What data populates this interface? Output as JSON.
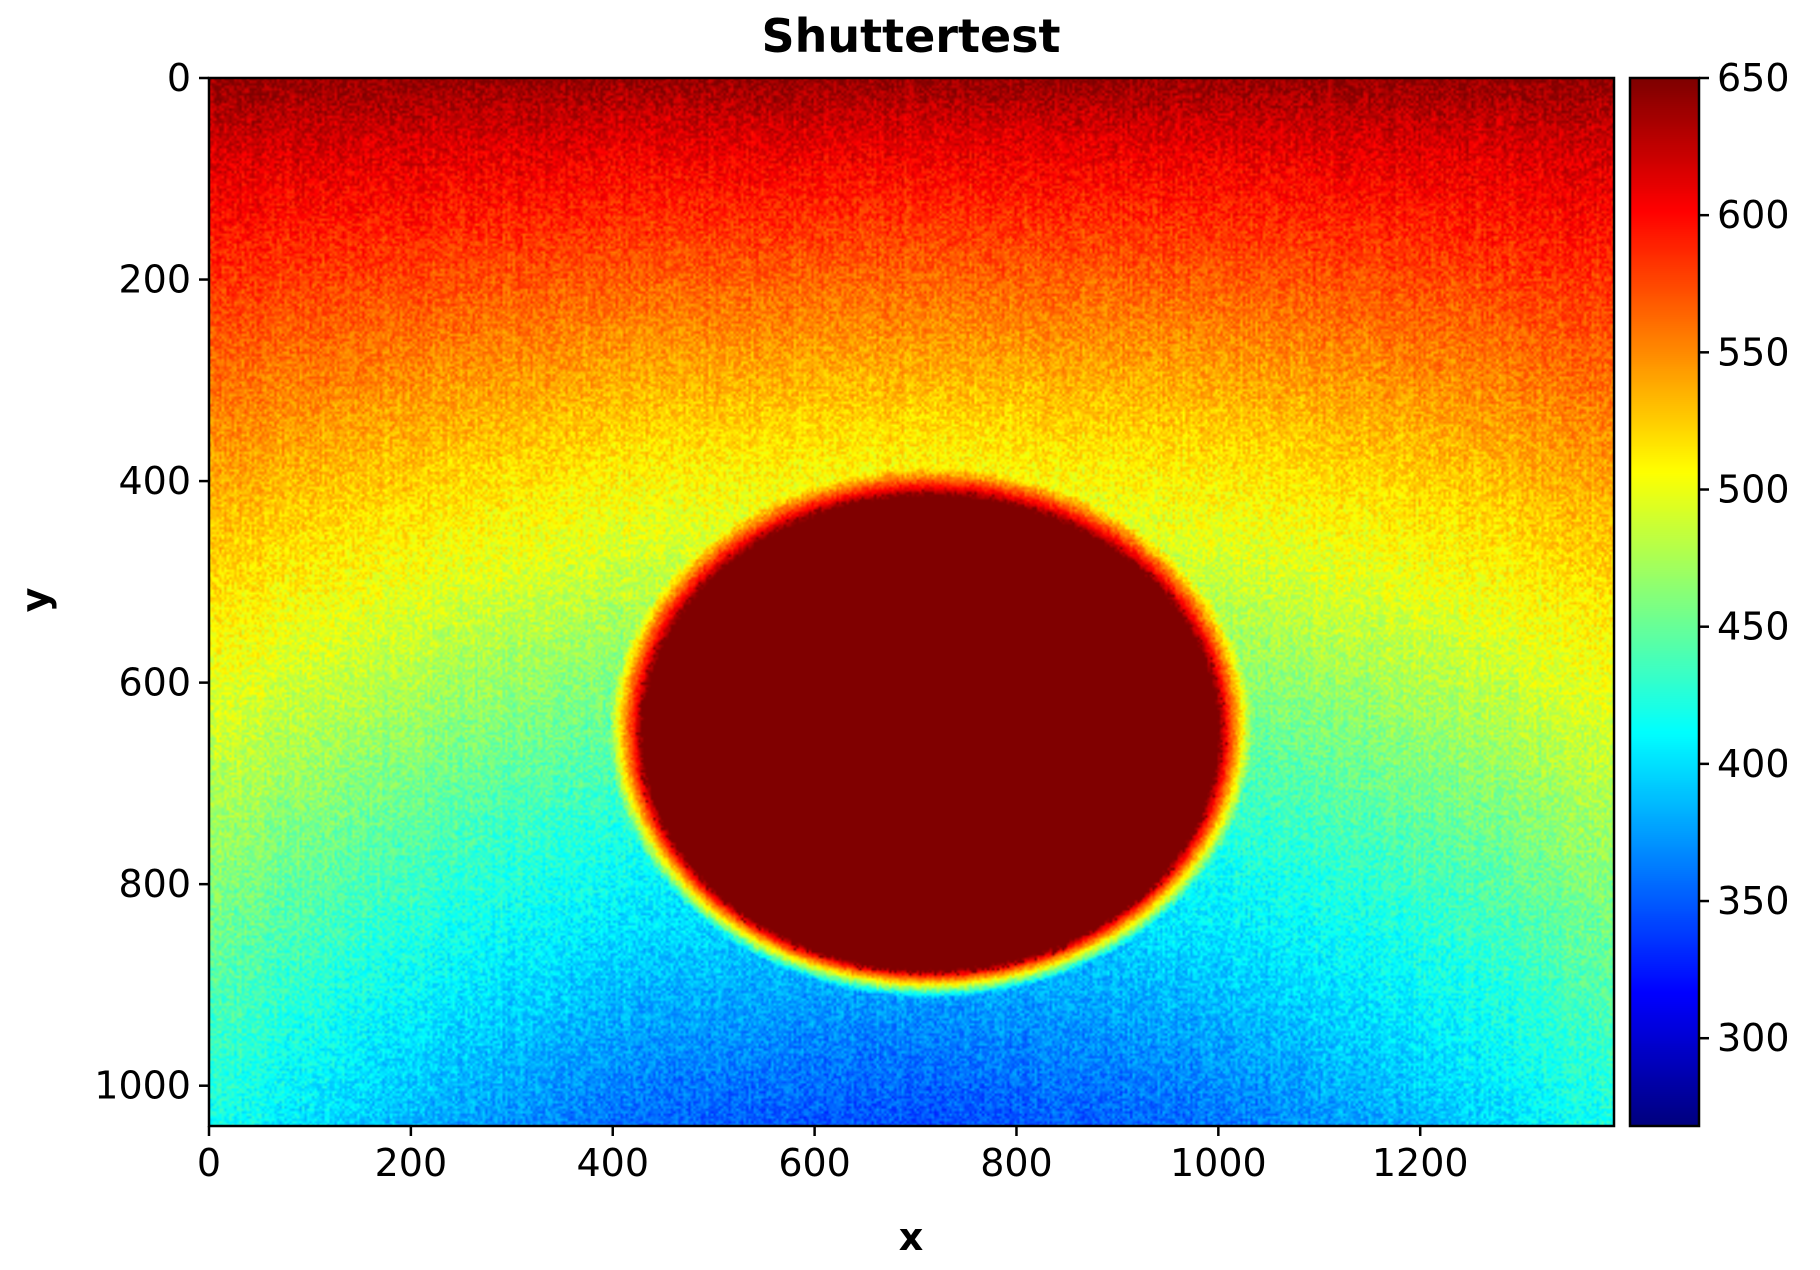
{
  "chart_data": {
    "type": "heatmap",
    "title": "Shuttertest",
    "xlabel": "x",
    "ylabel": "y",
    "xlim": [
      0,
      1392
    ],
    "ylim": [
      1040,
      0
    ],
    "xticks": [
      0,
      200,
      400,
      600,
      800,
      1000,
      1200
    ],
    "xtick_labels": [
      "0",
      "200",
      "400",
      "600",
      "800",
      "1000",
      "1200"
    ],
    "yticks": [
      0,
      200,
      400,
      600,
      800,
      1000
    ],
    "ytick_labels": [
      "0",
      "200",
      "400",
      "600",
      "800",
      "1000"
    ],
    "colormap": "jet",
    "colorbar": {
      "vmin": 268,
      "vmax": 650,
      "ticks": [
        300,
        350,
        400,
        450,
        500,
        550,
        600,
        650
      ],
      "tick_labels": [
        "300",
        "350",
        "400",
        "450",
        "500",
        "550",
        "600",
        "650"
      ]
    },
    "field": {
      "background": {
        "value_at_y0": 645,
        "value_at_y_max": 345,
        "profile_exponent": 0.8,
        "x_curvature": 0.25
      },
      "saturated_blob": {
        "center_x": 715,
        "center_y": 650,
        "radius_x": 285,
        "radius_y": 235,
        "value": 650
      }
    }
  }
}
